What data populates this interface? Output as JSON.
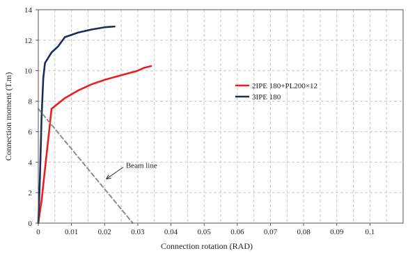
{
  "chart_data": {
    "type": "line",
    "title": "",
    "xlabel": "Connection rotation (RAD)",
    "ylabel": "Connection moment (T.m)",
    "xlim": [
      0,
      0.11
    ],
    "ylim": [
      0,
      14
    ],
    "x_ticks": [
      0,
      0.01,
      0.02,
      0.03,
      0.04,
      0.05,
      0.06,
      0.07,
      0.08,
      0.09,
      0.1
    ],
    "x_tick_labels": [
      "0",
      "0.01",
      "0.02",
      "0.03",
      "0.04",
      "0.05",
      "0.06",
      "0.07",
      "0.08",
      "0.09",
      "0.1"
    ],
    "y_ticks": [
      0,
      2,
      4,
      6,
      8,
      10,
      12,
      14
    ],
    "y_tick_labels": [
      "0",
      "2",
      "4",
      "6",
      "8",
      "10",
      "12",
      "14"
    ],
    "grid": true,
    "grid_style": "dashed",
    "legend_position": "right",
    "series": [
      {
        "name": "2IPE 180+PL200×12",
        "color": "#ee1c1c",
        "line_style": "solid",
        "points": [
          [
            0,
            0
          ],
          [
            0.001,
            1.5
          ],
          [
            0.002,
            3.5
          ],
          [
            0.003,
            5.5
          ],
          [
            0.004,
            7.5
          ],
          [
            0.008,
            8.2
          ],
          [
            0.012,
            8.7
          ],
          [
            0.016,
            9.1
          ],
          [
            0.02,
            9.4
          ],
          [
            0.025,
            9.7
          ],
          [
            0.03,
            10.0
          ],
          [
            0.032,
            10.2
          ],
          [
            0.034,
            10.3
          ]
        ]
      },
      {
        "name": "3IPE 180",
        "color": "#1c2b5e",
        "line_style": "solid",
        "points": [
          [
            0,
            0
          ],
          [
            0.0005,
            3
          ],
          [
            0.001,
            7
          ],
          [
            0.0015,
            9.5
          ],
          [
            0.002,
            10.5
          ],
          [
            0.004,
            11.2
          ],
          [
            0.006,
            11.6
          ],
          [
            0.008,
            12.2
          ],
          [
            0.012,
            12.5
          ],
          [
            0.016,
            12.7
          ],
          [
            0.02,
            12.85
          ],
          [
            0.023,
            12.9
          ]
        ]
      },
      {
        "name": "",
        "color": "#8c8c8c",
        "line_style": "dashed",
        "points": [
          [
            0,
            7.5
          ],
          [
            0.0285,
            0
          ]
        ]
      }
    ],
    "annotations": [
      {
        "text": "Beam line",
        "x": 0.026,
        "y": 3.8,
        "arrow_to": [
          0.0205,
          2.9
        ]
      }
    ]
  }
}
